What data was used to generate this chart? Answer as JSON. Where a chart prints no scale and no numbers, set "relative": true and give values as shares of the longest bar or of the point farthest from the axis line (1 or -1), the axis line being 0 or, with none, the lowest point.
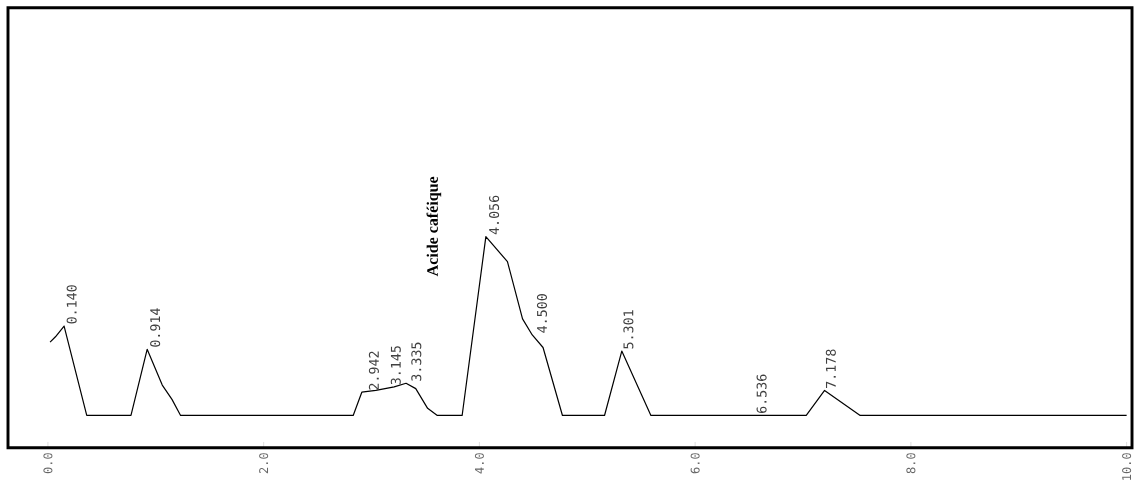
{
  "chart_data": {
    "type": "line",
    "relative": true,
    "x": [
      0.02,
      0.07,
      0.15,
      0.36,
      0.77,
      0.92,
      1.06,
      1.15,
      1.23,
      2.83,
      2.91,
      3.04,
      3.21,
      3.32,
      3.41,
      3.52,
      3.61,
      3.84,
      4.06,
      4.26,
      4.4,
      4.49,
      4.59,
      4.77,
      5.16,
      5.32,
      5.5,
      5.59,
      6.55,
      6.62,
      7.03,
      7.2,
      7.53,
      10.0
    ],
    "series": [
      {
        "color": "#000000",
        "values": [
          0.41,
          0.44,
          0.5,
          0,
          0,
          0.37,
          0.17,
          0.09,
          0,
          0,
          0.13,
          0.14,
          0.16,
          0.18,
          0.15,
          0.04,
          0,
          0,
          1.0,
          0.86,
          0.54,
          0.45,
          0.38,
          0,
          0,
          0.36,
          0.12,
          0,
          0,
          0,
          0,
          0.14,
          0,
          0
        ]
      }
    ],
    "xlim": [
      -0.37,
      10.05
    ],
    "xticks": [
      {
        "value": 0,
        "label": "0.0"
      },
      {
        "value": 2,
        "label": "2.0"
      },
      {
        "value": 4,
        "label": "4.0"
      },
      {
        "value": 6,
        "label": "6.0"
      },
      {
        "value": 8,
        "label": "8.0"
      },
      {
        "value": 10,
        "label": "10.0"
      }
    ],
    "annotations": [
      {
        "text": "Acide caféique",
        "x": 4.056,
        "y": 1.0
      },
      {
        "text": "0.140",
        "x": 0.14,
        "y": 0.5
      },
      {
        "text": "0.914",
        "x": 0.914,
        "y": 0.37
      },
      {
        "text": "2.942",
        "x": 2.942,
        "y": 0.13
      },
      {
        "text": "3.145",
        "x": 3.145,
        "y": 0.16
      },
      {
        "text": "3.335",
        "x": 3.335,
        "y": 0.18
      },
      {
        "text": "4.056",
        "x": 4.056,
        "y": 1.0
      },
      {
        "text": "4.500",
        "x": 4.5,
        "y": 0.45
      },
      {
        "text": "5.301",
        "x": 5.301,
        "y": 0.36
      },
      {
        "text": "6.536",
        "x": 6.536,
        "y": 0
      },
      {
        "text": "7.178",
        "x": 7.178,
        "y": 0.14
      }
    ]
  }
}
